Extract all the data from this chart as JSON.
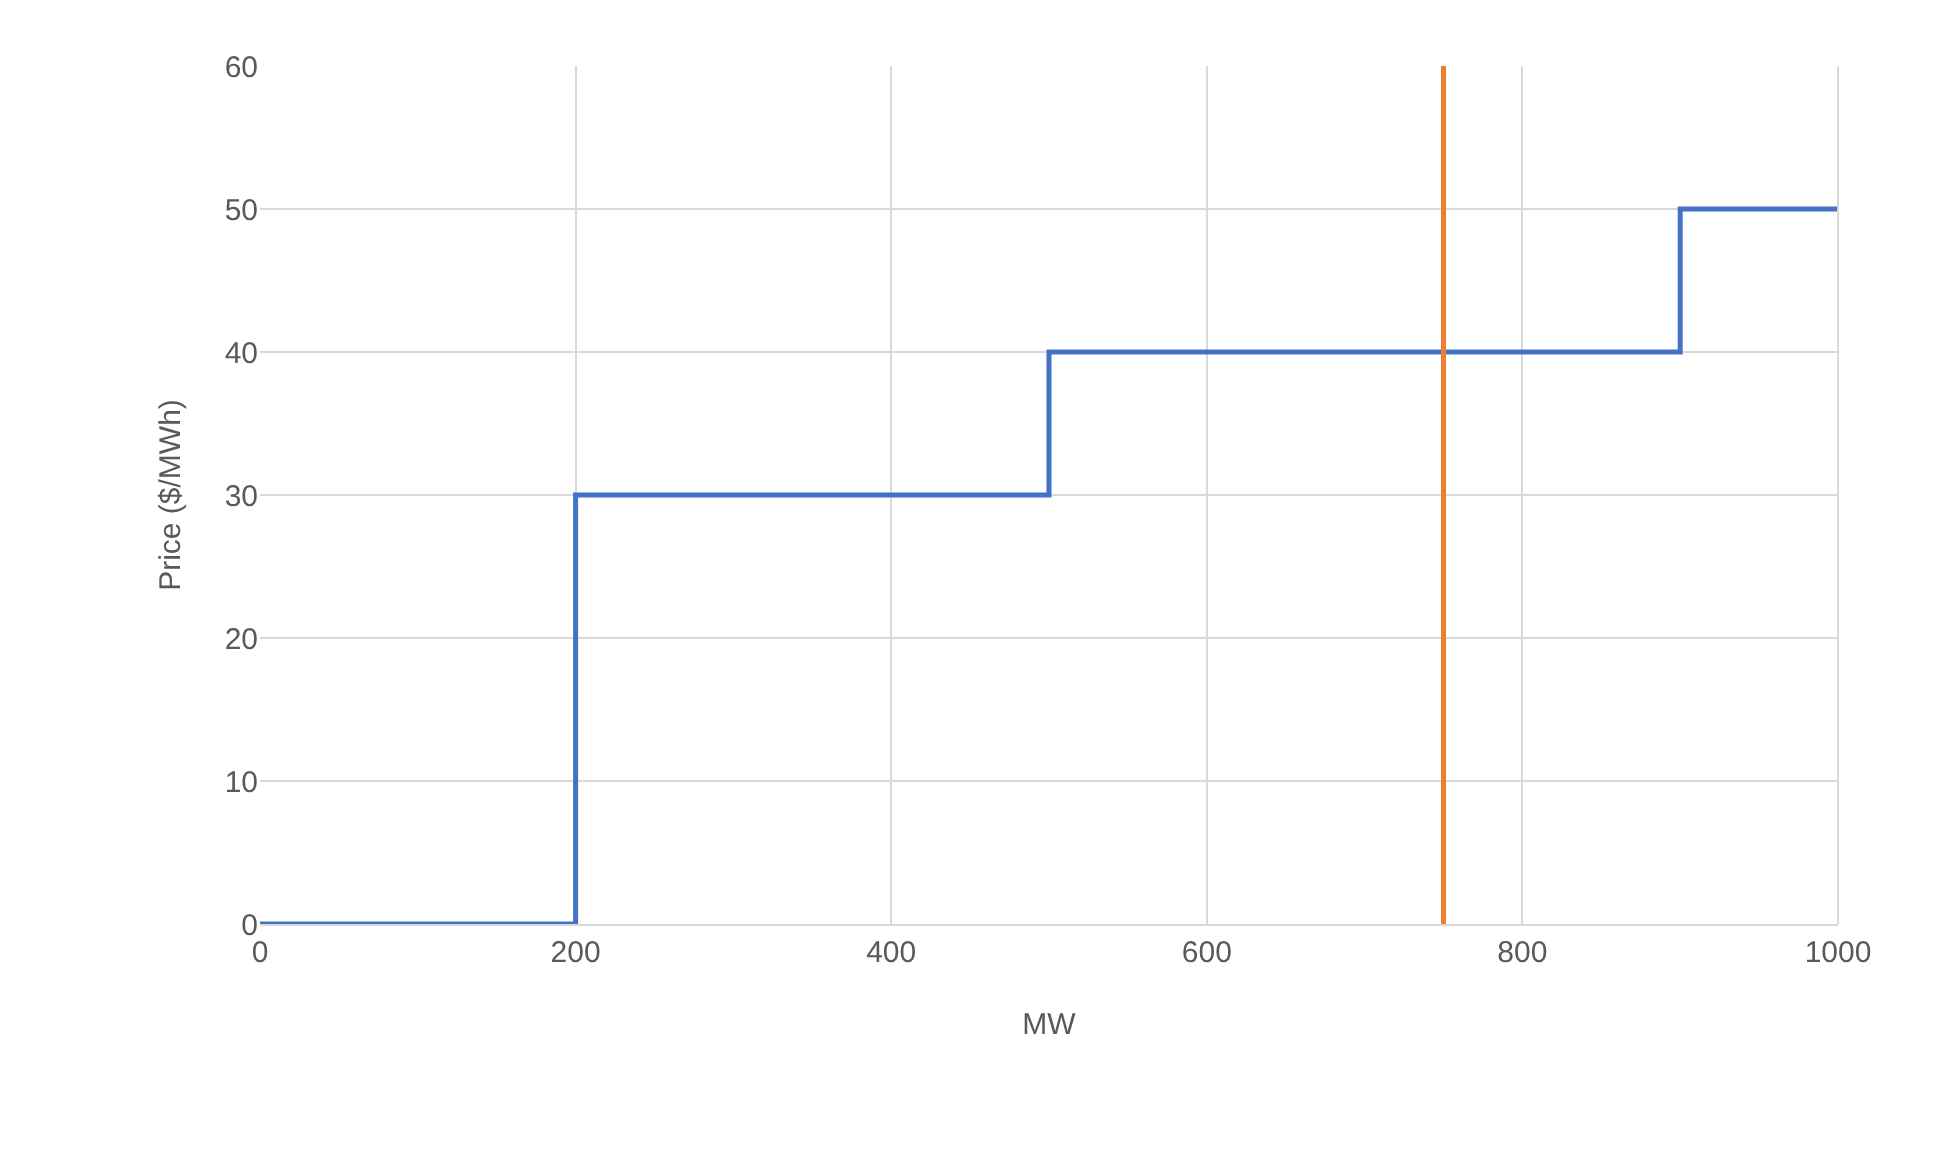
{
  "chart_data": {
    "type": "step",
    "xlabel": "MW",
    "ylabel": "Price ($/MWh)",
    "x": [
      0,
      200,
      500,
      900,
      1000
    ],
    "series": [
      {
        "color": "#4472c4",
        "values": [
          0,
          30,
          40,
          50,
          50
        ]
      }
    ],
    "xlim": [
      0,
      1000
    ],
    "xticks": [
      0,
      200,
      400,
      600,
      800,
      1000
    ],
    "ylim": [
      0,
      60
    ],
    "yticks": [
      0,
      10,
      20,
      30,
      40,
      50,
      60
    ],
    "ref_lines": [
      {
        "axis": "x",
        "value": 750,
        "color": "#ed7d31"
      }
    ],
    "grid": true,
    "marker": "none",
    "line_style": "solid"
  }
}
